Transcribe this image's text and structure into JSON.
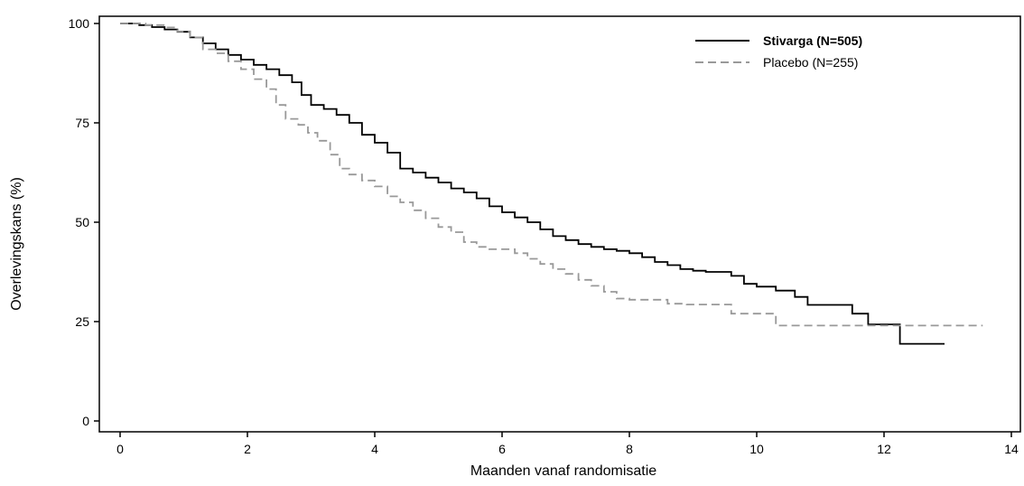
{
  "chart_data": {
    "type": "line",
    "step": true,
    "xlabel": "Maanden vanaf randomisatie",
    "ylabel": "Overlevingskans (%)",
    "xlim": [
      0,
      14
    ],
    "ylim": [
      0,
      100
    ],
    "xticks": [
      0,
      2,
      4,
      6,
      8,
      10,
      12,
      14
    ],
    "yticks": [
      0,
      25,
      50,
      75,
      100
    ],
    "grid": false,
    "legend_position": "top-right",
    "series": [
      {
        "name": "Stivarga (N=505)",
        "color": "#000000",
        "dash": "solid",
        "label_bold": true,
        "points": [
          [
            0,
            100
          ],
          [
            0.3,
            99.6
          ],
          [
            0.5,
            99.1
          ],
          [
            0.7,
            98.5
          ],
          [
            0.9,
            97.9
          ],
          [
            1.1,
            96.5
          ],
          [
            1.3,
            95
          ],
          [
            1.5,
            93.5
          ],
          [
            1.7,
            92.1
          ],
          [
            1.9,
            90.9
          ],
          [
            2.1,
            89.6
          ],
          [
            2.3,
            88.5
          ],
          [
            2.5,
            87
          ],
          [
            2.7,
            85.2
          ],
          [
            2.85,
            82
          ],
          [
            3.0,
            79.5
          ],
          [
            3.2,
            78.5
          ],
          [
            3.4,
            77
          ],
          [
            3.6,
            75
          ],
          [
            3.8,
            72
          ],
          [
            4.0,
            70
          ],
          [
            4.2,
            67.5
          ],
          [
            4.4,
            63.5
          ],
          [
            4.6,
            62.5
          ],
          [
            4.8,
            61.2
          ],
          [
            5.0,
            60
          ],
          [
            5.2,
            58.5
          ],
          [
            5.4,
            57.5
          ],
          [
            5.6,
            56
          ],
          [
            5.8,
            54
          ],
          [
            6.0,
            52.5
          ],
          [
            6.2,
            51.2
          ],
          [
            6.4,
            50
          ],
          [
            6.6,
            48.2
          ],
          [
            6.8,
            46.5
          ],
          [
            7.0,
            45.5
          ],
          [
            7.2,
            44.5
          ],
          [
            7.4,
            43.8
          ],
          [
            7.6,
            43.2
          ],
          [
            7.8,
            42.8
          ],
          [
            8.0,
            42.2
          ],
          [
            8.2,
            41.2
          ],
          [
            8.4,
            40
          ],
          [
            8.6,
            39.2
          ],
          [
            8.8,
            38.2
          ],
          [
            9.0,
            37.8
          ],
          [
            9.2,
            37.5
          ],
          [
            9.6,
            36.5
          ],
          [
            9.8,
            34.5
          ],
          [
            10.0,
            33.8
          ],
          [
            10.3,
            32.8
          ],
          [
            10.6,
            31.2
          ],
          [
            10.8,
            29.2
          ],
          [
            11.5,
            27
          ],
          [
            11.75,
            24.3
          ],
          [
            12.25,
            19.4
          ],
          [
            12.95,
            19.4
          ]
        ]
      },
      {
        "name": "Placebo (N=255)",
        "color": "#999999",
        "dash": "dashed",
        "label_bold": false,
        "points": [
          [
            0,
            100
          ],
          [
            0.4,
            99.6
          ],
          [
            0.7,
            99
          ],
          [
            0.9,
            98
          ],
          [
            1.1,
            96.5
          ],
          [
            1.3,
            93.5
          ],
          [
            1.5,
            92.5
          ],
          [
            1.7,
            90.5
          ],
          [
            1.9,
            88.5
          ],
          [
            2.1,
            86
          ],
          [
            2.3,
            83.5
          ],
          [
            2.45,
            79.5
          ],
          [
            2.6,
            76
          ],
          [
            2.8,
            74.5
          ],
          [
            2.95,
            72.5
          ],
          [
            3.1,
            70.5
          ],
          [
            3.3,
            67
          ],
          [
            3.45,
            63.5
          ],
          [
            3.6,
            62
          ],
          [
            3.8,
            60.5
          ],
          [
            4.0,
            59
          ],
          [
            4.2,
            56.5
          ],
          [
            4.4,
            55
          ],
          [
            4.6,
            53
          ],
          [
            4.8,
            51
          ],
          [
            5.0,
            48.8
          ],
          [
            5.2,
            47.5
          ],
          [
            5.4,
            45
          ],
          [
            5.6,
            43.8
          ],
          [
            5.8,
            43.2
          ],
          [
            6.2,
            42.2
          ],
          [
            6.4,
            40.8
          ],
          [
            6.6,
            39.5
          ],
          [
            6.8,
            38.2
          ],
          [
            7.0,
            37
          ],
          [
            7.2,
            35.5
          ],
          [
            7.4,
            34
          ],
          [
            7.6,
            32.5
          ],
          [
            7.8,
            30.8
          ],
          [
            8.0,
            30.5
          ],
          [
            8.6,
            29.5
          ],
          [
            8.9,
            29.3
          ],
          [
            9.6,
            27
          ],
          [
            10.3,
            24
          ],
          [
            11.0,
            24
          ],
          [
            11.7,
            24
          ],
          [
            12.3,
            24
          ],
          [
            13.55,
            24
          ]
        ]
      }
    ]
  }
}
